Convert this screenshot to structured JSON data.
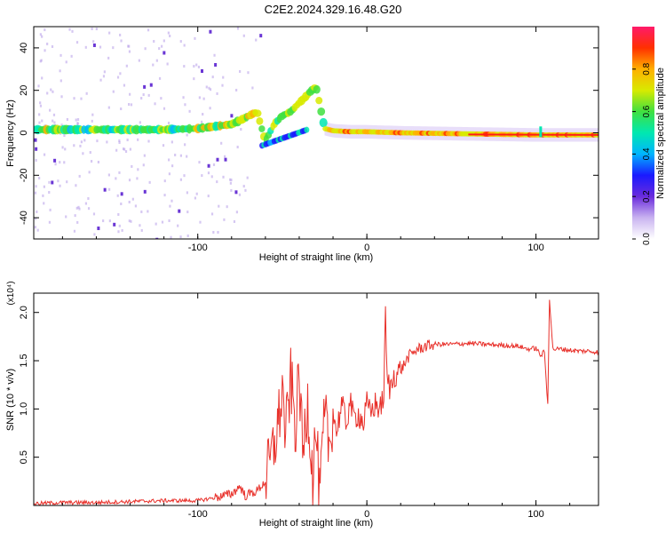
{
  "title": "C2E2.2024.329.16.48.G20",
  "chart_data": [
    {
      "type": "heatmap",
      "xlabel": "Height of straight line (km)",
      "ylabel": "Frequency (Hz)",
      "xlim": [
        -197,
        137
      ],
      "ylim": [
        -50,
        50
      ],
      "x_ticks": [
        -100,
        0,
        100
      ],
      "y_ticks": [
        -40,
        -20,
        0,
        20,
        40
      ],
      "colorbar": {
        "label": "Normalized spectral amplitude",
        "range": [
          0.0,
          1.0
        ],
        "ticks": [
          "0.0",
          "0.2",
          "0.4",
          "0.6",
          "0.8"
        ],
        "colors": [
          "#ffffff",
          "#c9b3f0",
          "#6a2bdc",
          "#1a1aff",
          "#00b4ff",
          "#00e8b0",
          "#40e040",
          "#d8ea00",
          "#ffb000",
          "#ff3000",
          "#ff1a6a"
        ]
      },
      "ridge": {
        "x": [
          -197,
          -150,
          -120,
          -100,
          -90,
          -80,
          -72,
          -65,
          -60,
          -55,
          -50,
          -45,
          -40,
          -35,
          -30,
          -25,
          -20,
          -10,
          0,
          20,
          60,
          100,
          137
        ],
        "freq": [
          1.5,
          1.5,
          1.5,
          2,
          3,
          4,
          7,
          10,
          -4,
          4,
          8,
          10,
          14,
          18,
          22,
          2,
          1,
          0.5,
          0.5,
          0,
          -0.5,
          -1,
          -1
        ]
      }
    },
    {
      "type": "line",
      "xlabel": "Height of straight line (km)",
      "ylabel": "SNR (10 * v/v)",
      "multiplier": "(x10⁴)",
      "xlim": [
        -197,
        137
      ],
      "ylim": [
        0,
        2.2
      ],
      "x_ticks": [
        -100,
        0,
        100
      ],
      "y_ticks": [
        0.5,
        1.0,
        1.5,
        2.0
      ],
      "color": "#e8302a",
      "series": [
        {
          "x": [
            -197,
            -180,
            -160,
            -140,
            -120,
            -100,
            -90,
            -80,
            -75,
            -72,
            -65,
            -60,
            -55,
            -52,
            -50,
            -48,
            -45,
            -42,
            -40,
            -38,
            -35,
            -32,
            -30,
            -28,
            -25,
            -22,
            -20,
            -18,
            -15,
            -12,
            -10,
            -8,
            -5,
            -2,
            0,
            2,
            5,
            8,
            10,
            11,
            12,
            14,
            16,
            20,
            25,
            30,
            35,
            40,
            50,
            60,
            70,
            80,
            90,
            95,
            100,
            103,
            105,
            106,
            107,
            108,
            110,
            115,
            120,
            125,
            130,
            137
          ],
          "y": [
            0.02,
            0.03,
            0.03,
            0.04,
            0.05,
            0.05,
            0.08,
            0.12,
            0.2,
            0.1,
            0.15,
            0.25,
            0.6,
            0.9,
            1.2,
            0.7,
            1.3,
            0.8,
            1.4,
            0.5,
            1.1,
            0.3,
            0.8,
            0.05,
            0.9,
            0.6,
            1.0,
            0.75,
            1.05,
            0.85,
            1.1,
            0.9,
            0.95,
            0.85,
            1.05,
            0.95,
            1.05,
            1.0,
            1.15,
            1.95,
            1.3,
            1.2,
            1.35,
            1.4,
            1.55,
            1.62,
            1.65,
            1.67,
            1.67,
            1.68,
            1.67,
            1.66,
            1.65,
            1.62,
            1.63,
            1.55,
            1.6,
            1.3,
            1.05,
            2.15,
            1.62,
            1.62,
            1.61,
            1.6,
            1.6,
            1.59
          ]
        }
      ]
    }
  ]
}
